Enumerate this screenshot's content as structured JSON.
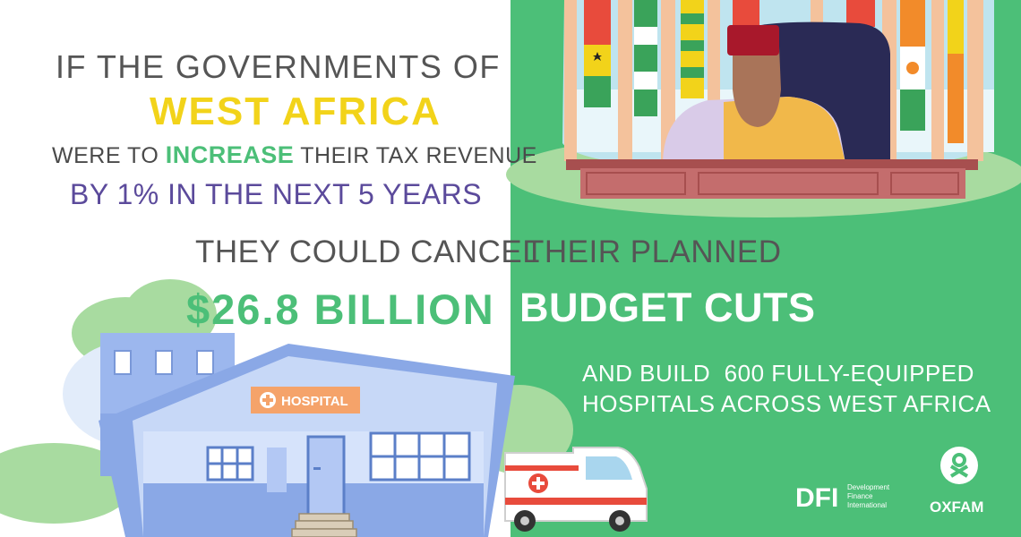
{
  "headline": {
    "line1": "IF THE GOVERNMENTS OF",
    "line2": "WEST AFRICA",
    "line3_before": "WERE TO ",
    "line3_accent": "INCREASE",
    "line3_after": " THEIR TAX REVENUE",
    "line4": "BY 1% IN THE NEXT 5 YEARS"
  },
  "statement": {
    "left_top": "THEY COULD CANCEL",
    "amount": "$26.8 BILLION",
    "right_top": "THEIR PLANNED",
    "right_bottom": "BUDGET CUTS",
    "extra_line1": "AND BUILD  600 FULLY-EQUIPPED",
    "extra_line2": "HOSPITALS ACROSS WEST AFRICA"
  },
  "hospital_sign": "HOSPITAL",
  "logos": {
    "dfi_mark": "DFI",
    "dfi_line1": "Development",
    "dfi_line2": "Finance",
    "dfi_line3": "International",
    "oxfam": "OXFAM"
  },
  "colors": {
    "green": "#4cbf78",
    "yellow": "#f2d31a",
    "purple": "#5b4a9b",
    "grey_text": "#555555",
    "hospital_blue": "#8fb0ea"
  },
  "icons": [
    "flag-icon",
    "hospital-cross-icon",
    "ambulance-icon",
    "oxfam-logo-icon",
    "dfi-logo-icon"
  ]
}
